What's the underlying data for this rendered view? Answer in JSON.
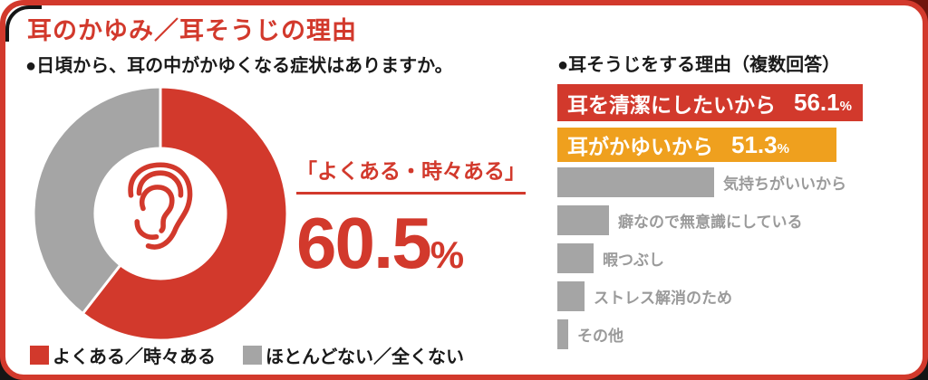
{
  "card": {
    "title": "耳のかゆみ／耳そうじの理由",
    "accent_red": "#d2392c",
    "accent_orange": "#efa01e",
    "accent_gray": "#a5a5a5",
    "border_black": "#151515"
  },
  "donut_section": {
    "question": "●日頃から、耳の中がかゆくなる症状はありますか。",
    "highlight_label": "「よくある・時々ある」",
    "highlight_value": "60.5",
    "highlight_unit": "%",
    "legend": [
      {
        "label": "よくある／時々ある",
        "color": "#d2392c"
      },
      {
        "label": "ほとんどない／全くない",
        "color": "#a5a5a5"
      }
    ]
  },
  "bar_section": {
    "heading": "●耳そうじをする理由（複数回答）"
  },
  "chart_data": [
    {
      "type": "pie",
      "donut": true,
      "title": "日頃から、耳の中がかゆくなる症状はありますか。",
      "labels": [
        "よくある／時々ある",
        "ほとんどない／全くない"
      ],
      "values": [
        60.5,
        39.5
      ],
      "colors": [
        "#d2392c",
        "#a5a5a5"
      ],
      "start_angle": "top",
      "direction": "clockwise",
      "center_icon": "ear",
      "annotation": "「よくある・時々ある」 60.5%"
    },
    {
      "type": "bar",
      "orientation": "horizontal",
      "title": "耳そうじをする理由（複数回答）",
      "categories": [
        "耳を清潔にしたいから",
        "耳がかゆいから",
        "気持ちがいいから",
        "癖なので無意識にしている",
        "暇つぶし",
        "ストレス解消のため",
        "その他"
      ],
      "values": [
        56.1,
        51.3,
        28.8,
        9.5,
        6.7,
        5.0,
        2.0
      ],
      "value_labels": [
        "56.1",
        "51.3",
        "",
        "",
        "",
        "",
        ""
      ],
      "value_labels_shown": [
        true,
        true,
        false,
        false,
        false,
        false,
        false
      ],
      "values_estimated_from_pixels": [
        false,
        false,
        true,
        true,
        true,
        true,
        true
      ],
      "colors": [
        "#d2392c",
        "#efa01e",
        "#a5a5a5",
        "#a5a5a5",
        "#a5a5a5",
        "#a5a5a5",
        "#a5a5a5"
      ],
      "xlim": [
        0,
        67.5
      ],
      "unit": "%"
    }
  ]
}
